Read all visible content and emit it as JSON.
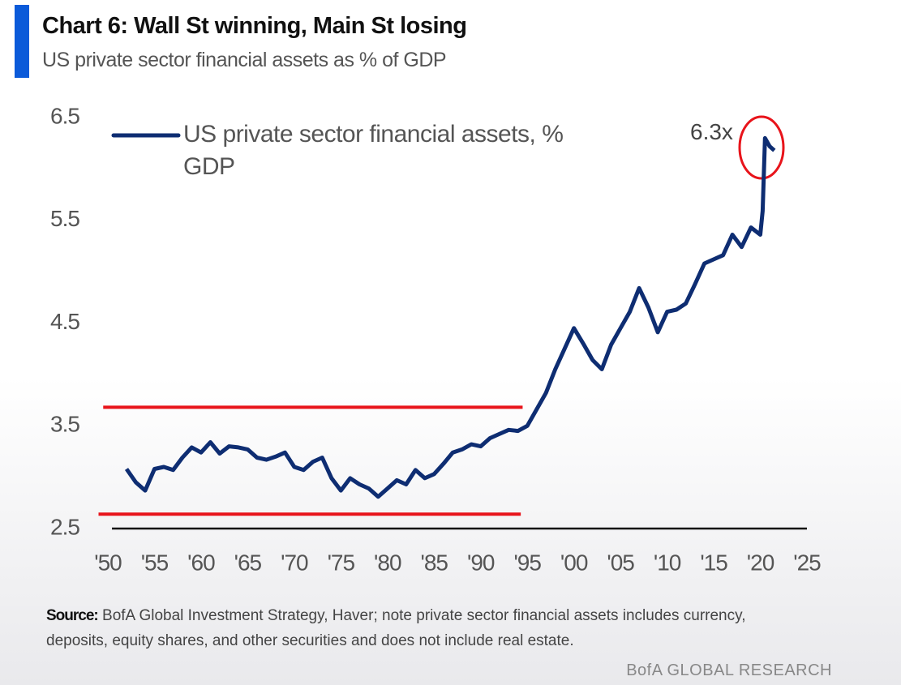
{
  "chart_data": {
    "type": "line",
    "title": "Chart 6: Wall St winning, Main St losing",
    "subtitle": "US private sector financial assets as % of GDP",
    "x": [
      1952,
      1953,
      1954,
      1955,
      1956,
      1957,
      1958,
      1959,
      1960,
      1961,
      1962,
      1963,
      1964,
      1965,
      1966,
      1967,
      1968,
      1969,
      1970,
      1971,
      1972,
      1973,
      1974,
      1975,
      1976,
      1977,
      1978,
      1979,
      1980,
      1981,
      1982,
      1983,
      1984,
      1985,
      1986,
      1987,
      1988,
      1989,
      1990,
      1991,
      1992,
      1993,
      1994,
      1995,
      1996,
      1997,
      1998,
      1999,
      2000,
      2001,
      2002,
      2003,
      2004,
      2005,
      2006,
      2007,
      2008,
      2009,
      2010,
      2011,
      2012,
      2013,
      2014,
      2015,
      2016,
      2017,
      2018,
      2019,
      2020,
      2020.25,
      2020.5,
      2021,
      2021.5
    ],
    "series": [
      {
        "name": "US private sector financial assets, % GDP",
        "color": "#0e2d72",
        "values": [
          3.08,
          2.95,
          2.87,
          3.08,
          3.1,
          3.07,
          3.19,
          3.29,
          3.24,
          3.34,
          3.23,
          3.3,
          3.29,
          3.27,
          3.19,
          3.17,
          3.2,
          3.24,
          3.1,
          3.07,
          3.15,
          3.19,
          2.99,
          2.87,
          2.99,
          2.93,
          2.89,
          2.81,
          2.89,
          2.97,
          2.93,
          3.07,
          2.99,
          3.03,
          3.13,
          3.24,
          3.27,
          3.32,
          3.3,
          3.38,
          3.42,
          3.46,
          3.45,
          3.5,
          3.66,
          3.82,
          4.05,
          4.25,
          4.45,
          4.3,
          4.14,
          4.05,
          4.29,
          4.45,
          4.61,
          4.84,
          4.65,
          4.41,
          4.61,
          4.63,
          4.69,
          4.88,
          5.08,
          5.12,
          5.16,
          5.36,
          5.24,
          5.43,
          5.36,
          5.59,
          6.3,
          6.22,
          6.18
        ]
      }
    ],
    "reference_lines": [
      {
        "value": 3.68,
        "x": [
          1949.5,
          1994.5
        ],
        "color": "#e8141b"
      },
      {
        "value": 2.64,
        "x": [
          1949,
          1994.3
        ],
        "color": "#e8141b"
      }
    ],
    "annotation": "6.3x",
    "xlim": [
      1950,
      2025
    ],
    "xticks": [
      {
        "value": 1950,
        "label": "'50"
      },
      {
        "value": 1955,
        "label": "'55"
      },
      {
        "value": 1960,
        "label": "'60"
      },
      {
        "value": 1965,
        "label": "'65"
      },
      {
        "value": 1970,
        "label": "'70"
      },
      {
        "value": 1975,
        "label": "'75"
      },
      {
        "value": 1980,
        "label": "'80"
      },
      {
        "value": 1985,
        "label": "'85"
      },
      {
        "value": 1990,
        "label": "'90"
      },
      {
        "value": 1995,
        "label": "'95"
      },
      {
        "value": 2000,
        "label": "'00"
      },
      {
        "value": 2005,
        "label": "'05"
      },
      {
        "value": 2010,
        "label": "'10"
      },
      {
        "value": 2015,
        "label": "'15"
      },
      {
        "value": 2020,
        "label": "'20"
      },
      {
        "value": 2025,
        "label": "'25"
      }
    ],
    "ylim": [
      2.5,
      6.5
    ],
    "yticks": [
      6.5,
      5.5,
      4.5,
      3.5,
      2.5
    ],
    "grid": false,
    "source_label": "Source:",
    "source": "BofA Global Investment Strategy, Haver; note private sector financial assets includes currency, deposits, equity shares, and other securities and does not include real estate.",
    "footer": "BofA GLOBAL RESEARCH"
  }
}
